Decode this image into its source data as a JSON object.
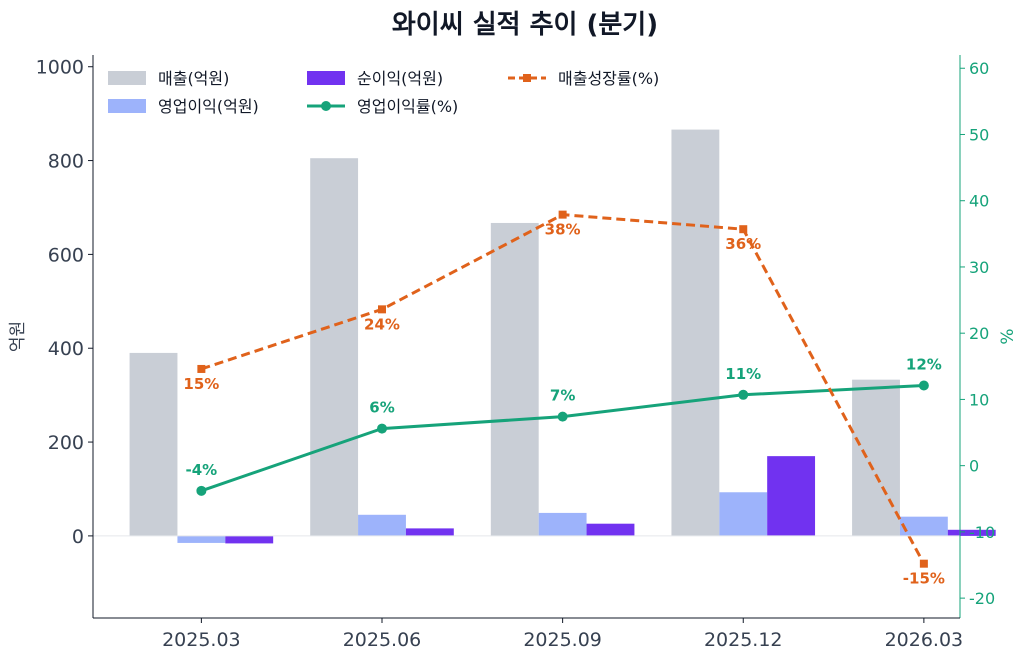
{
  "chart_data": {
    "type": "bar",
    "title": "와이씨 실적 추이 (분기)",
    "categories": [
      "2025.03",
      "2025.06",
      "2025.09",
      "2025.12",
      "2026.03"
    ],
    "ylabel": "억원",
    "y2label": "%",
    "ylim": [
      -175,
      1025
    ],
    "y2lim": [
      -23,
      62
    ],
    "yticks": [
      0,
      200,
      400,
      600,
      800,
      1000
    ],
    "y2ticks": [
      -20,
      -10,
      0,
      10,
      20,
      30,
      40,
      50,
      60
    ],
    "legend_position": "top-left",
    "series": [
      {
        "name": "매출(억원)",
        "type": "bar",
        "axis": "left",
        "color": "#c9ced6",
        "values": [
          390,
          805,
          667,
          866,
          333
        ]
      },
      {
        "name": "영업이익(억원)",
        "type": "bar",
        "axis": "left",
        "color": "#9db3fb",
        "values": [
          -15,
          45,
          49,
          93,
          41
        ]
      },
      {
        "name": "순이익(억원)",
        "type": "bar",
        "axis": "left",
        "color": "#7132f0",
        "values": [
          -16,
          16,
          26,
          170,
          13
        ]
      },
      {
        "name": "영업이익률(%)",
        "type": "line",
        "axis": "right",
        "color": "#16a37a",
        "style": "solid",
        "marker": "circle",
        "values": [
          -3.8,
          5.6,
          7.4,
          10.7,
          12.1
        ],
        "labels": [
          "-4%",
          "6%",
          "7%",
          "11%",
          "12%"
        ]
      },
      {
        "name": "매출성장률(%)",
        "type": "line",
        "axis": "right",
        "color": "#e0621b",
        "style": "dashed",
        "marker": "square",
        "values": [
          14.6,
          23.6,
          37.9,
          35.7,
          -14.8
        ],
        "labels": [
          "15%",
          "24%",
          "38%",
          "36%",
          "-15%"
        ]
      }
    ]
  }
}
